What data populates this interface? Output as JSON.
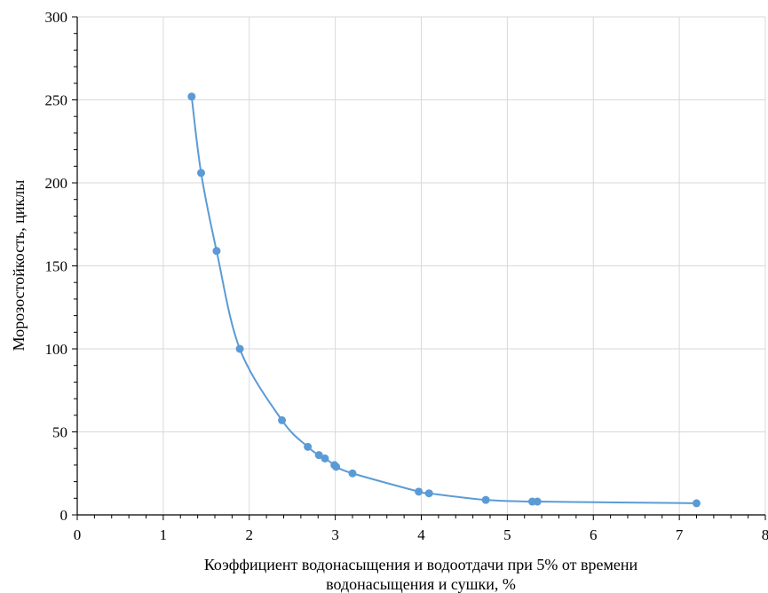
{
  "chart_data": {
    "type": "scatter",
    "title": "",
    "xlabel_line1": "Коэффициент водонасыщения и водоотдачи при 5% от времени",
    "xlabel_line2": "водонасыщения и сушки, %",
    "ylabel": "Морозостойкость, циклы",
    "xlim": [
      0,
      8
    ],
    "ylim": [
      0,
      300
    ],
    "x_ticks": [
      "0",
      "1",
      "2",
      "3",
      "4",
      "5",
      "6",
      "7",
      "8"
    ],
    "y_ticks": [
      "0",
      "50",
      "100",
      "150",
      "200",
      "250",
      "300"
    ],
    "grid": true,
    "smooth_line": true,
    "color": "#5B9BD5",
    "series": [
      {
        "x": [
          1.33,
          1.44,
          1.62,
          1.89,
          2.38,
          2.68,
          2.81,
          2.88,
          2.99,
          3.01,
          3.2,
          3.97,
          4.09,
          4.75,
          5.29,
          5.35,
          7.2
        ],
        "y": [
          252,
          206,
          159,
          100,
          57,
          41,
          36,
          34,
          30,
          29,
          25,
          14,
          13,
          9,
          8,
          8,
          7
        ]
      }
    ]
  }
}
